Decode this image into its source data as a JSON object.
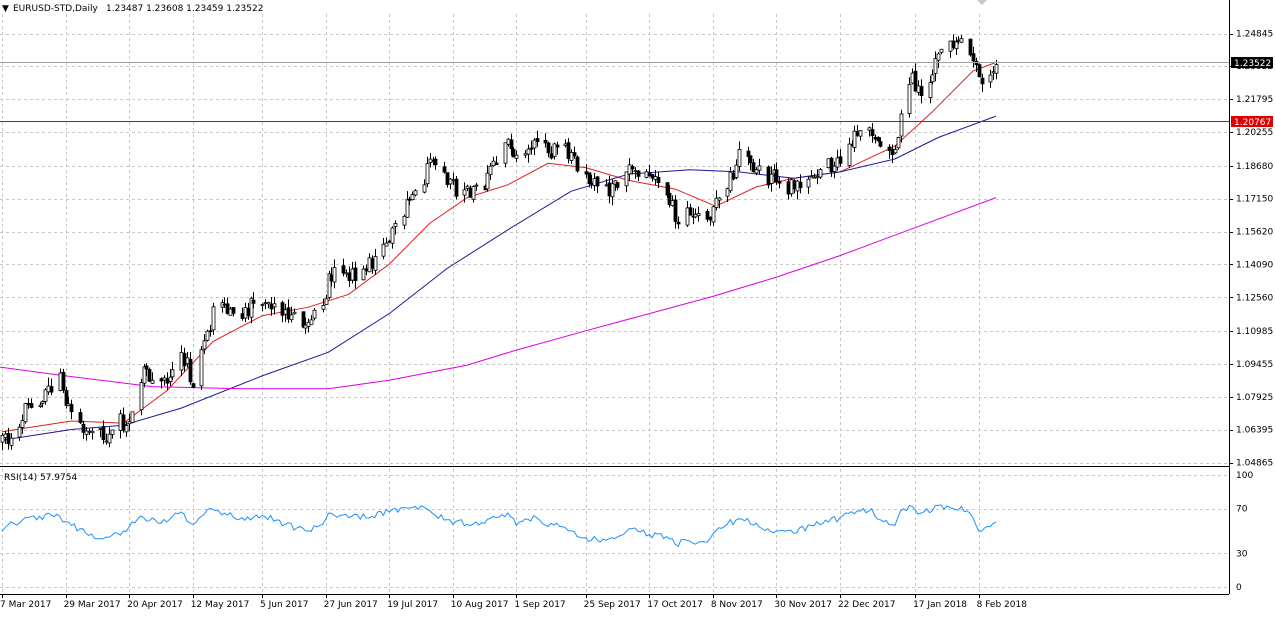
{
  "header": {
    "arrow_glyph": "▼",
    "symbol_label": "EURUSD-STD,Daily",
    "ohlc_text": "1.23487 1.23608 1.23459 1.23522"
  },
  "rsi_panel": {
    "label": "RSI(14) 57.9754"
  },
  "colors": {
    "grid": "#c8c8c8",
    "ma_fast": "#e02020",
    "ma_mid": "#1a1a9a",
    "ma_slow": "#e000e0",
    "rsi": "#1e90ff",
    "support_line": "#e00000",
    "support_badge": "#e00000",
    "price_badge": "#000000"
  },
  "chart_data": [
    {
      "type": "candlestick",
      "symbol": "EURUSD-STD",
      "timeframe": "Daily",
      "ylim": [
        1.0455,
        1.2625
      ],
      "y_ticks": [
        "1.24845",
        "1.23322",
        "1.21795",
        "1.20255",
        "1.18680",
        "1.17150",
        "1.15620",
        "1.14090",
        "1.12560",
        "1.10985",
        "1.09455",
        "1.07925",
        "1.06395",
        "1.04865"
      ],
      "x_ticks": [
        "7 Mar 2017",
        "29 Mar 2017",
        "20 Apr 2017",
        "12 May 2017",
        "5 Jun 2017",
        "27 Jun 2017",
        "19 Jul 2017",
        "10 Aug 2017",
        "1 Sep 2017",
        "25 Sep 2017",
        "17 Oct 2017",
        "8 Nov 2017",
        "30 Nov 2017",
        "22 Dec 2017",
        "17 Jan 2018",
        "8 Feb 2018"
      ],
      "current_price": "1.23522",
      "horizontal_level": "1.20767",
      "price_path": [
        [
          "7 Mar 2017",
          1.058
        ],
        [
          "15 Mar 2017",
          1.072
        ],
        [
          "21 Mar 2017",
          1.08
        ],
        [
          "27 Mar 2017",
          1.086
        ],
        [
          "31 Mar 2017",
          1.068
        ],
        [
          "5 Apr 2017",
          1.066
        ],
        [
          "12 Apr 2017",
          1.062
        ],
        [
          "18 Apr 2017",
          1.068
        ],
        [
          "21 Apr 2017",
          1.074
        ],
        [
          "24 Apr 2017",
          1.09
        ],
        [
          "28 Apr 2017",
          1.091
        ],
        [
          "3 May 2017",
          1.089
        ],
        [
          "8 May 2017",
          1.098
        ],
        [
          "12 May 2017",
          1.088
        ],
        [
          "16 May 2017",
          1.105
        ],
        [
          "19 May 2017",
          1.118
        ],
        [
          "23 May 2017",
          1.121
        ],
        [
          "29 May 2017",
          1.118
        ],
        [
          "5 Jun 2017",
          1.125
        ],
        [
          "13 Jun 2017",
          1.12
        ],
        [
          "21 Jun 2017",
          1.114
        ],
        [
          "26 Jun 2017",
          1.119
        ],
        [
          "28 Jun 2017",
          1.138
        ],
        [
          "5 Jul 2017",
          1.136
        ],
        [
          "13 Jul 2017",
          1.141
        ],
        [
          "19 Jul 2017",
          1.151
        ],
        [
          "24 Jul 2017",
          1.165
        ],
        [
          "28 Jul 2017",
          1.175
        ],
        [
          "2 Aug 2017",
          1.187
        ],
        [
          "8 Aug 2017",
          1.178
        ],
        [
          "15 Aug 2017",
          1.173
        ],
        [
          "21 Aug 2017",
          1.178
        ],
        [
          "25 Aug 2017",
          1.189
        ],
        [
          "29 Aug 2017",
          1.198
        ],
        [
          "1 Sep 2017",
          1.191
        ],
        [
          "8 Sep 2017",
          1.202
        ],
        [
          "12 Sep 2017",
          1.193
        ],
        [
          "15 Sep 2017",
          1.198
        ],
        [
          "20 Sep 2017",
          1.19
        ],
        [
          "25 Sep 2017",
          1.183
        ],
        [
          "29 Sep 2017",
          1.179
        ],
        [
          "4 Oct 2017",
          1.175
        ],
        [
          "10 Oct 2017",
          1.183
        ],
        [
          "13 Oct 2017",
          1.182
        ],
        [
          "17 Oct 2017",
          1.179
        ],
        [
          "23 Oct 2017",
          1.176
        ],
        [
          "26 Oct 2017",
          1.163
        ],
        [
          "31 Oct 2017",
          1.165
        ],
        [
          "6 Nov 2017",
          1.161
        ],
        [
          "9 Nov 2017",
          1.17
        ],
        [
          "13 Nov 2017",
          1.176
        ],
        [
          "17 Nov 2017",
          1.191
        ],
        [
          "23 Nov 2017",
          1.187
        ],
        [
          "27 Nov 2017",
          1.182
        ],
        [
          "30 Nov 2017",
          1.18
        ],
        [
          "6 Dec 2017",
          1.177
        ],
        [
          "12 Dec 2017",
          1.182
        ],
        [
          "18 Dec 2017",
          1.187
        ],
        [
          "22 Dec 2017",
          1.191
        ],
        [
          "28 Dec 2017",
          1.201
        ],
        [
          "2 Jan 2018",
          1.205
        ],
        [
          "5 Jan 2018",
          1.196
        ],
        [
          "10 Jan 2018",
          1.194
        ],
        [
          "12 Jan 2018",
          1.215
        ],
        [
          "16 Jan 2018",
          1.226
        ],
        [
          "19 Jan 2018",
          1.222
        ],
        [
          "23 Jan 2018",
          1.229
        ],
        [
          "25 Jan 2018",
          1.243
        ],
        [
          "30 Jan 2018",
          1.242
        ],
        [
          "2 Feb 2018",
          1.245
        ],
        [
          "6 Feb 2018",
          1.237
        ],
        [
          "8 Feb 2018",
          1.225
        ],
        [
          "12 Feb 2018",
          1.228
        ],
        [
          "14 Feb 2018",
          1.235
        ]
      ],
      "series": [
        {
          "name": "",
          "color_key": "ma_fast",
          "points": [
            [
              "7 Mar 2017",
              1.063
            ],
            [
              "31 Mar 2017",
              1.068
            ],
            [
              "18 Apr 2017",
              1.067
            ],
            [
              "3 May 2017",
              1.082
            ],
            [
              "19 May 2017",
              1.105
            ],
            [
              "5 Jun 2017",
              1.117
            ],
            [
              "21 Jun 2017",
              1.121
            ],
            [
              "5 Jul 2017",
              1.127
            ],
            [
              "19 Jul 2017",
              1.141
            ],
            [
              "2 Aug 2017",
              1.16
            ],
            [
              "15 Aug 2017",
              1.172
            ],
            [
              "29 Aug 2017",
              1.178
            ],
            [
              "12 Sep 2017",
              1.188
            ],
            [
              "25 Sep 2017",
              1.186
            ],
            [
              "10 Oct 2017",
              1.18
            ],
            [
              "26 Oct 2017",
              1.176
            ],
            [
              "9 Nov 2017",
              1.168
            ],
            [
              "23 Nov 2017",
              1.177
            ],
            [
              "6 Dec 2017",
              1.181
            ],
            [
              "22 Dec 2017",
              1.184
            ],
            [
              "10 Jan 2018",
              1.196
            ],
            [
              "23 Jan 2018",
              1.212
            ],
            [
              "6 Feb 2018",
              1.231
            ],
            [
              "14 Feb 2018",
              1.235
            ]
          ]
        },
        {
          "name": "",
          "color_key": "ma_mid",
          "points": [
            [
              "7 Mar 2017",
              1.059
            ],
            [
              "31 Mar 2017",
              1.064
            ],
            [
              "18 Apr 2017",
              1.066
            ],
            [
              "8 May 2017",
              1.074
            ],
            [
              "5 Jun 2017",
              1.089
            ],
            [
              "28 Jun 2017",
              1.1
            ],
            [
              "19 Jul 2017",
              1.118
            ],
            [
              "8 Aug 2017",
              1.139
            ],
            [
              "29 Aug 2017",
              1.157
            ],
            [
              "20 Sep 2017",
              1.175
            ],
            [
              "10 Oct 2017",
              1.183
            ],
            [
              "31 Oct 2017",
              1.185
            ],
            [
              "17 Nov 2017",
              1.184
            ],
            [
              "6 Dec 2017",
              1.181
            ],
            [
              "22 Dec 2017",
              1.184
            ],
            [
              "10 Jan 2018",
              1.19
            ],
            [
              "25 Jan 2018",
              1.2
            ],
            [
              "14 Feb 2018",
              1.21
            ]
          ]
        },
        {
          "name": "",
          "color_key": "ma_slow",
          "points": [
            [
              "1 Mar 2017",
              1.094
            ],
            [
              "29 Mar 2017",
              1.089
            ],
            [
              "28 Apr 2017",
              1.084
            ],
            [
              "29 May 2017",
              1.083
            ],
            [
              "28 Jun 2017",
              1.083
            ],
            [
              "19 Jul 2017",
              1.087
            ],
            [
              "15 Aug 2017",
              1.094
            ],
            [
              "1 Sep 2017",
              1.101
            ],
            [
              "25 Sep 2017",
              1.11
            ],
            [
              "17 Oct 2017",
              1.118
            ],
            [
              "8 Nov 2017",
              1.126
            ],
            [
              "30 Nov 2017",
              1.135
            ],
            [
              "22 Dec 2017",
              1.145
            ],
            [
              "17 Jan 2018",
              1.158
            ],
            [
              "14 Feb 2018",
              1.172
            ]
          ]
        }
      ]
    },
    {
      "type": "line",
      "title": "RSI(14) 57.9754",
      "ylim": [
        0,
        100
      ],
      "y_ticks": [
        "100",
        "70",
        "30",
        "0"
      ],
      "series": [
        {
          "name": "",
          "color_key": "rsi",
          "points": [
            [
              "7 Mar 2017",
              50
            ],
            [
              "11 Mar 2017",
              57
            ],
            [
              "15 Mar 2017",
              62
            ],
            [
              "19 Mar 2017",
              60
            ],
            [
              "23 Mar 2017",
              66
            ],
            [
              "27 Mar 2017",
              63
            ],
            [
              "31 Mar 2017",
              55
            ],
            [
              "5 Apr 2017",
              48
            ],
            [
              "10 Apr 2017",
              43
            ],
            [
              "14 Apr 2017",
              46
            ],
            [
              "18 Apr 2017",
              50
            ],
            [
              "21 Apr 2017",
              58
            ],
            [
              "25 Apr 2017",
              62
            ],
            [
              "29 Apr 2017",
              60
            ],
            [
              "3 May 2017",
              58
            ],
            [
              "8 May 2017",
              67
            ],
            [
              "12 May 2017",
              56
            ],
            [
              "16 May 2017",
              65
            ],
            [
              "19 May 2017",
              69
            ],
            [
              "23 May 2017",
              66
            ],
            [
              "29 May 2017",
              62
            ],
            [
              "5 Jun 2017",
              64
            ],
            [
              "13 Jun 2017",
              56
            ],
            [
              "21 Jun 2017",
              50
            ],
            [
              "26 Jun 2017",
              56
            ],
            [
              "28 Jun 2017",
              66
            ],
            [
              "5 Jul 2017",
              62
            ],
            [
              "13 Jul 2017",
              63
            ],
            [
              "19 Jul 2017",
              67
            ],
            [
              "24 Jul 2017",
              71
            ],
            [
              "28 Jul 2017",
              72
            ],
            [
              "2 Aug 2017",
              68
            ],
            [
              "8 Aug 2017",
              60
            ],
            [
              "15 Aug 2017",
              56
            ],
            [
              "21 Aug 2017",
              57
            ],
            [
              "25 Aug 2017",
              62
            ],
            [
              "29 Aug 2017",
              66
            ],
            [
              "1 Sep 2017",
              55
            ],
            [
              "8 Sep 2017",
              62
            ],
            [
              "12 Sep 2017",
              54
            ],
            [
              "15 Sep 2017",
              57
            ],
            [
              "20 Sep 2017",
              50
            ],
            [
              "25 Sep 2017",
              44
            ],
            [
              "29 Sep 2017",
              42
            ],
            [
              "4 Oct 2017",
              44
            ],
            [
              "10 Oct 2017",
              52
            ],
            [
              "13 Oct 2017",
              50
            ],
            [
              "17 Oct 2017",
              47
            ],
            [
              "23 Oct 2017",
              45
            ],
            [
              "26 Oct 2017",
              38
            ],
            [
              "31 Oct 2017",
              41
            ],
            [
              "6 Nov 2017",
              40
            ],
            [
              "9 Nov 2017",
              50
            ],
            [
              "13 Nov 2017",
              56
            ],
            [
              "17 Nov 2017",
              61
            ],
            [
              "23 Nov 2017",
              57
            ],
            [
              "27 Nov 2017",
              52
            ],
            [
              "30 Nov 2017",
              50
            ],
            [
              "6 Dec 2017",
              48
            ],
            [
              "12 Dec 2017",
              55
            ],
            [
              "18 Dec 2017",
              58
            ],
            [
              "22 Dec 2017",
              62
            ],
            [
              "28 Dec 2017",
              68
            ],
            [
              "2 Jan 2018",
              70
            ],
            [
              "5 Jan 2018",
              60
            ],
            [
              "10 Jan 2018",
              55
            ],
            [
              "12 Jan 2018",
              68
            ],
            [
              "16 Jan 2018",
              72
            ],
            [
              "19 Jan 2018",
              66
            ],
            [
              "23 Jan 2018",
              68
            ],
            [
              "25 Jan 2018",
              73
            ],
            [
              "30 Jan 2018",
              70
            ],
            [
              "2 Feb 2018",
              72
            ],
            [
              "6 Feb 2018",
              62
            ],
            [
              "8 Feb 2018",
              50
            ],
            [
              "12 Feb 2018",
              54
            ],
            [
              "14 Feb 2018",
              58
            ]
          ]
        }
      ]
    }
  ]
}
